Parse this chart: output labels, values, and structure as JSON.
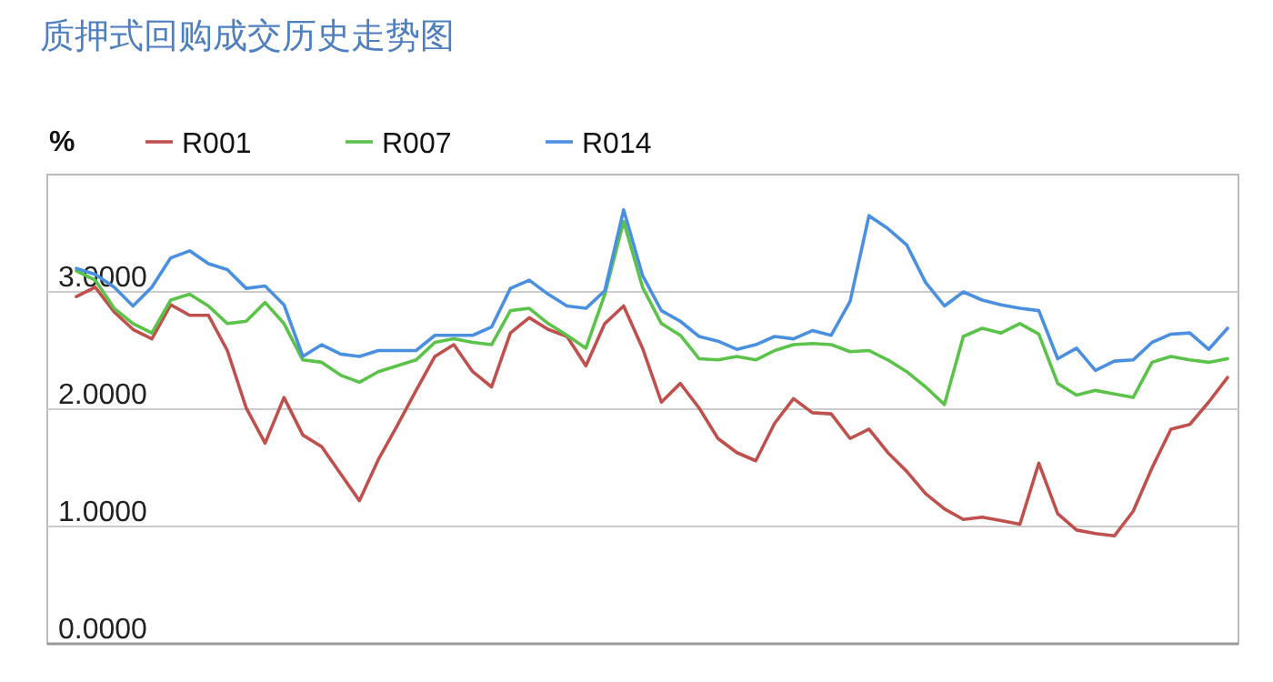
{
  "chart_data": {
    "type": "line",
    "title": "质押式回购成交历史走势图",
    "ylabel": "%",
    "categories": [
      null,
      null,
      null,
      null,
      null,
      null,
      null,
      null,
      null,
      null,
      null,
      null,
      null,
      null,
      null,
      null,
      null,
      null,
      null,
      null,
      null,
      null,
      null,
      null,
      null,
      null,
      null,
      null,
      null,
      null,
      null,
      null,
      null,
      null,
      null,
      null,
      null,
      null,
      null,
      null,
      null,
      null,
      null,
      null,
      null,
      null,
      null,
      null,
      null,
      null,
      null,
      null,
      null,
      null,
      null,
      null,
      null,
      null,
      null,
      null,
      null,
      null
    ],
    "series": [
      {
        "name": "R001",
        "color": "#c0504d",
        "values": [
          2.96,
          3.04,
          2.83,
          2.68,
          2.6,
          2.89,
          2.8,
          2.8,
          2.5,
          2.01,
          1.71,
          2.1,
          1.78,
          1.68,
          1.45,
          1.22,
          1.57,
          1.86,
          2.16,
          2.45,
          2.55,
          2.32,
          2.19,
          2.65,
          2.78,
          2.68,
          2.62,
          2.37,
          2.73,
          2.88,
          2.52,
          2.06,
          2.22,
          2.01,
          1.75,
          1.63,
          1.56,
          1.88,
          2.09,
          1.97,
          1.96,
          1.75,
          1.83,
          1.63,
          1.47,
          1.28,
          1.15,
          1.06,
          1.08,
          1.05,
          1.02,
          1.54,
          1.11,
          0.97,
          0.94,
          0.92,
          1.13,
          1.5,
          1.83,
          1.87,
          2.06,
          2.27
        ]
      },
      {
        "name": "R007",
        "color": "#5cc34a",
        "values": [
          3.18,
          3.1,
          2.86,
          2.73,
          2.65,
          2.93,
          2.98,
          2.88,
          2.73,
          2.75,
          2.91,
          2.73,
          2.42,
          2.4,
          2.29,
          2.23,
          2.32,
          2.37,
          2.42,
          2.57,
          2.6,
          2.57,
          2.55,
          2.84,
          2.86,
          2.73,
          2.63,
          2.52,
          2.98,
          3.6,
          3.04,
          2.73,
          2.63,
          2.43,
          2.42,
          2.45,
          2.42,
          2.5,
          2.55,
          2.56,
          2.55,
          2.49,
          2.5,
          2.42,
          2.32,
          2.19,
          2.04,
          2.62,
          2.69,
          2.65,
          2.73,
          2.64,
          2.22,
          2.12,
          2.16,
          2.13,
          2.1,
          2.4,
          2.45,
          2.42,
          2.4,
          2.43
        ]
      },
      {
        "name": "R014",
        "color": "#4a8fe0",
        "values": [
          3.2,
          3.15,
          3.04,
          2.88,
          3.04,
          3.29,
          3.35,
          3.24,
          3.19,
          3.03,
          3.05,
          2.89,
          2.45,
          2.55,
          2.47,
          2.45,
          2.5,
          2.5,
          2.5,
          2.63,
          2.63,
          2.63,
          2.7,
          3.03,
          3.1,
          2.98,
          2.88,
          2.86,
          3.01,
          3.7,
          3.14,
          2.84,
          2.75,
          2.62,
          2.58,
          2.51,
          2.55,
          2.62,
          2.6,
          2.67,
          2.63,
          2.92,
          3.65,
          3.54,
          3.4,
          3.08,
          2.88,
          3.0,
          2.93,
          2.89,
          2.86,
          2.84,
          2.43,
          2.52,
          2.33,
          2.41,
          2.42,
          2.57,
          2.64,
          2.65,
          2.51,
          2.69
        ]
      }
    ],
    "ylim": [
      0,
      4
    ],
    "yticks": [
      {
        "value": 0,
        "label": "0.0000"
      },
      {
        "value": 1,
        "label": "1.0000"
      },
      {
        "value": 2,
        "label": "2.0000"
      },
      {
        "value": 3,
        "label": "3.0000"
      }
    ],
    "grid": "y",
    "legend": "top"
  }
}
